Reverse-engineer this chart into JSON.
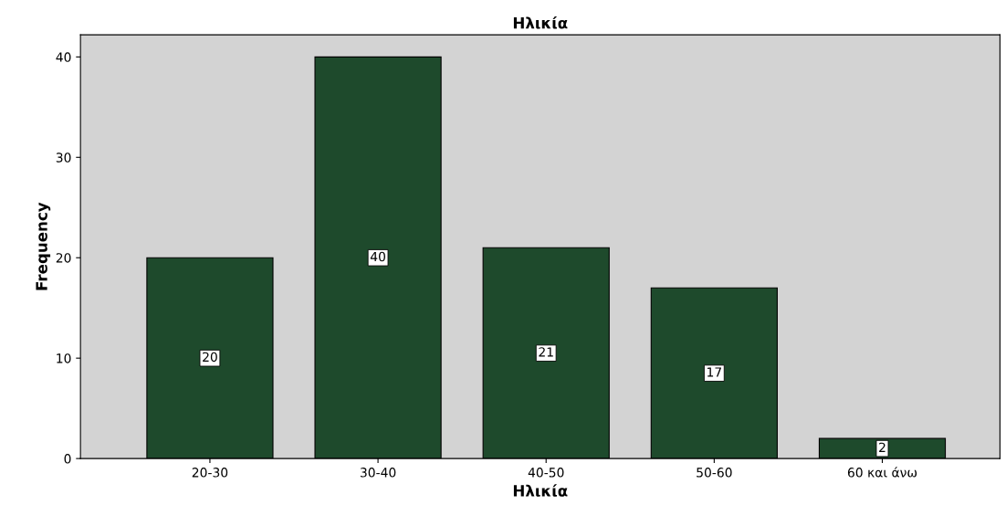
{
  "chart_data": {
    "type": "bar",
    "title": "Ηλικία",
    "xlabel": "Ηλικία",
    "ylabel": "Frequency",
    "categories": [
      "20-30",
      "30-40",
      "40-50",
      "50-60",
      "60 και άνω"
    ],
    "values": [
      20,
      40,
      21,
      17,
      2
    ],
    "color": "#1e4a2c",
    "ylim": [
      0,
      42.2
    ],
    "yticks": [
      0,
      10,
      20,
      30,
      40
    ],
    "grid": false,
    "data_labels": true
  }
}
